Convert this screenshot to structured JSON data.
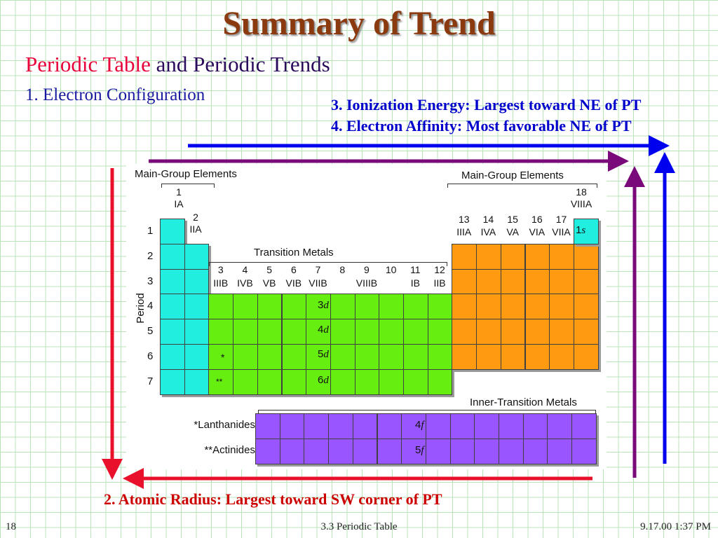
{
  "slide": {
    "title": "Summary of Trend",
    "subtitle_part1": "Periodic Table",
    "subtitle_part2": " and Periodic Trends",
    "item1": "1.  Electron Configuration",
    "item2": "2.  Atomic Radius:  Largest toward SW corner of PT",
    "item3": "3. Ionization Energy: Largest toward NE of PT",
    "item4": "4. Electron Affinity:   Most favorable NE of PT"
  },
  "footer": {
    "page": "18",
    "center": "3.3  Periodic Table",
    "date": "9.17.00 1:37 PM"
  },
  "table": {
    "main_group_left": "Main-Group Elements",
    "main_group_right": "Main-Group Elements",
    "transition": "Transition Metals",
    "inner_transition": "Inner-Transition Metals",
    "period_axis": "Period",
    "lanthanides": "*Lanthanides",
    "actinides": "**Actinides",
    "star1": "*",
    "star2": "**",
    "periods": [
      "1",
      "2",
      "3",
      "4",
      "5",
      "6",
      "7"
    ],
    "group1": {
      "num": "1",
      "roman": "IA"
    },
    "group2": {
      "num": "2",
      "roman": "IIA"
    },
    "group18": {
      "num": "18",
      "roman": "VIIIA"
    },
    "groups_13_17": [
      {
        "num": "13",
        "roman": "IIIA"
      },
      {
        "num": "14",
        "roman": "IVA"
      },
      {
        "num": "15",
        "roman": "VA"
      },
      {
        "num": "16",
        "roman": "VIA"
      },
      {
        "num": "17",
        "roman": "VIIA"
      }
    ],
    "groups_3_12": [
      {
        "num": "3",
        "roman": "IIIB"
      },
      {
        "num": "4",
        "roman": "IVB"
      },
      {
        "num": "5",
        "roman": "VB"
      },
      {
        "num": "6",
        "roman": "VIB"
      },
      {
        "num": "7",
        "roman": "VIIB"
      },
      {
        "num": "8",
        "roman": ""
      },
      {
        "num": "9",
        "roman": "VIIIB"
      },
      {
        "num": "10",
        "roman": ""
      },
      {
        "num": "11",
        "roman": "IB"
      },
      {
        "num": "12",
        "roman": "IIB"
      }
    ],
    "orbitals": {
      "s1_num": "1",
      "s1_letter": "s",
      "d3_num": "3",
      "d3_letter": "d",
      "d4_num": "4",
      "d4_letter": "d",
      "d5_num": "5",
      "d5_letter": "d",
      "d6_num": "6",
      "d6_letter": "d",
      "f4_num": "4",
      "f4_letter": "f",
      "f5_num": "5",
      "f5_letter": "f"
    }
  },
  "colors": {
    "s_block": "#22eee0",
    "d_block": "#66ee11",
    "p_block": "#ff9a11",
    "f_block": "#9955ff",
    "arrow_red": "#e8102a",
    "arrow_blue": "#0000ee",
    "arrow_purple": "#7a0a7a"
  }
}
